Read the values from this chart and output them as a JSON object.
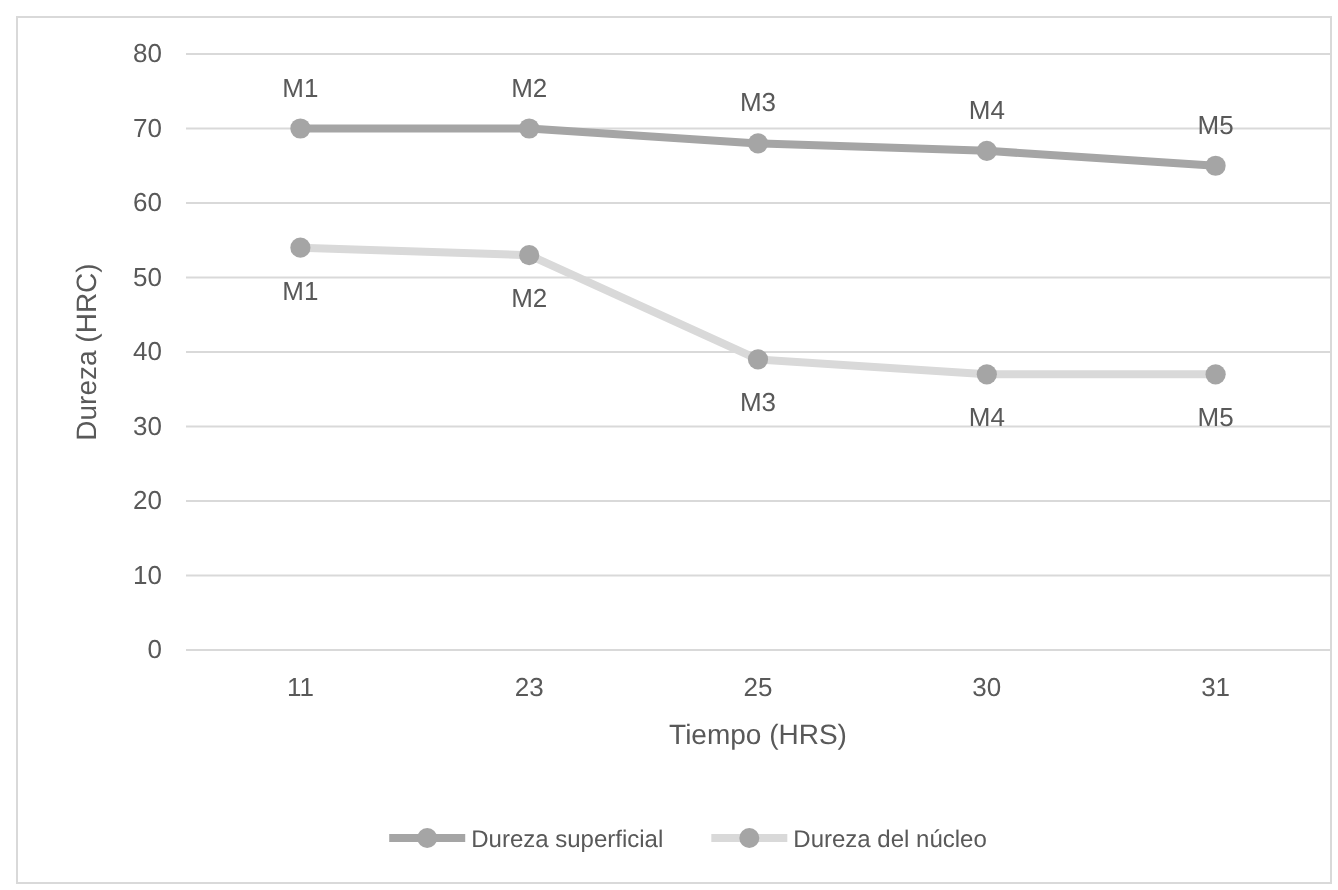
{
  "chart_data": {
    "type": "line",
    "xlabel": "Tiempo (HRS)",
    "ylabel": "Dureza (HRC)",
    "categories": [
      "11",
      "23",
      "25",
      "30",
      "31"
    ],
    "series": [
      {
        "name": "Dureza superficial",
        "color": "#a5a5a5",
        "values": [
          70,
          70,
          68,
          67,
          65
        ]
      },
      {
        "name": "Dureza del núcleo",
        "color": "#d9d9d9",
        "values": [
          54,
          53,
          39,
          37,
          37
        ]
      }
    ],
    "ylim": [
      0,
      80
    ],
    "yticks": [
      0,
      10,
      20,
      30,
      40,
      50,
      60,
      70,
      80
    ],
    "grid": "y",
    "legend": "bottom",
    "marker": "circle",
    "line_style": "solid",
    "annotations": [
      {
        "text": "M1",
        "x": "11",
        "y": 70
      },
      {
        "text": "M2",
        "x": "23",
        "y": 70
      },
      {
        "text": "M3",
        "x": "25",
        "y": 68
      },
      {
        "text": "M4",
        "x": "30",
        "y": 67
      },
      {
        "text": "M5",
        "x": "31",
        "y": 65
      },
      {
        "text": "M1",
        "x": "11",
        "y": 54
      },
      {
        "text": "M2",
        "x": "23",
        "y": 53
      },
      {
        "text": "M3",
        "x": "25",
        "y": 39
      },
      {
        "text": "M4",
        "x": "30",
        "y": 37
      },
      {
        "text": "M5",
        "x": "31",
        "y": 37
      }
    ]
  }
}
